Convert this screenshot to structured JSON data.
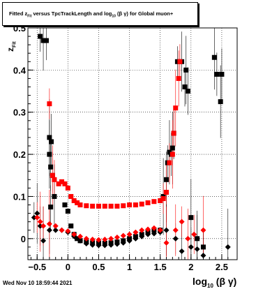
{
  "title": {
    "prefix": "Fitted  z",
    "sub": "Fit",
    "middle": "  versus TpcTrackLength and log",
    "sub2": "10",
    "suffix": " (β  γ) for Global muon+"
  },
  "footer": {
    "date": "Wed Nov 10 18:59:44 2021"
  },
  "axes": {
    "xlabel_main": "log",
    "xlabel_sub": "10",
    "xlabel_tail": " (β γ)",
    "ylabel_main": "z",
    "ylabel_sub": "Fit"
  },
  "colors": {
    "black_series": "#000000",
    "red_series": "#ff0000",
    "grid": "#000000"
  },
  "chart_data": {
    "type": "scatter",
    "xlim": [
      -0.65,
      2.75
    ],
    "ylim": [
      -0.05,
      0.5
    ],
    "grid": true,
    "xticks": [
      -0.5,
      0,
      0.5,
      1,
      1.5,
      2,
      2.5
    ],
    "xtick_labels": [
      "−0.5",
      "0",
      "0.5",
      "1",
      "1.5",
      "2",
      "2.5"
    ],
    "yticks": [
      0,
      0.1,
      0.2,
      0.3,
      0.4,
      0.5
    ],
    "ytick_labels": [
      "0",
      "0.1",
      "0.2",
      "0.3",
      "0.4",
      "0.5"
    ],
    "series": [
      {
        "marker": "square",
        "color": "#000000",
        "points": [
          [
            -0.45,
            0.48
          ],
          [
            -0.4,
            0.47
          ],
          [
            -0.35,
            0.47
          ],
          [
            -0.3,
            0.2
          ],
          [
            -0.28,
            0.17
          ],
          [
            -0.3,
            0.24
          ],
          [
            -0.27,
            0.23
          ],
          [
            -0.25,
            0.15
          ],
          [
            -0.22,
            0.1
          ],
          [
            -0.28,
            0.075
          ],
          [
            -0.05,
            0.08
          ],
          [
            0.0,
            0.065
          ],
          [
            0.05,
            0.03
          ],
          [
            0.1,
            0.01
          ],
          [
            0.15,
            0.0
          ],
          [
            0.2,
            -0.005
          ],
          [
            0.3,
            -0.008
          ],
          [
            0.4,
            -0.01
          ],
          [
            0.5,
            -0.011
          ],
          [
            0.6,
            -0.011
          ],
          [
            0.7,
            -0.01
          ],
          [
            0.8,
            -0.008
          ],
          [
            0.9,
            -0.005
          ],
          [
            1.0,
            0.0
          ],
          [
            1.1,
            0.005
          ],
          [
            1.2,
            0.01
          ],
          [
            1.3,
            0.015
          ],
          [
            1.4,
            0.02
          ],
          [
            1.5,
            0.02
          ],
          [
            1.55,
            0.1
          ],
          [
            1.6,
            0.14
          ],
          [
            1.62,
            0.18
          ],
          [
            1.65,
            0.205
          ],
          [
            1.68,
            0.2
          ],
          [
            1.7,
            0.215
          ],
          [
            1.72,
            0.25
          ],
          [
            1.78,
            0.42
          ],
          [
            1.85,
            0.42
          ],
          [
            1.9,
            0.36
          ],
          [
            1.92,
            0.4
          ],
          [
            1.95,
            0.35
          ],
          [
            2.0,
            0.05
          ],
          [
            2.1,
            0.0
          ],
          [
            2.2,
            -0.02
          ],
          [
            2.38,
            0.43
          ],
          [
            2.42,
            0.39
          ],
          [
            2.48,
            0.325
          ],
          [
            2.5,
            0.39
          ]
        ]
      },
      {
        "marker": "square",
        "color": "#ff0000",
        "points": [
          [
            -0.3,
            0.32
          ],
          [
            -0.25,
            0.15
          ],
          [
            -0.22,
            0.14
          ],
          [
            -0.15,
            0.13
          ],
          [
            -0.1,
            0.135
          ],
          [
            -0.05,
            0.13
          ],
          [
            0.0,
            0.12
          ],
          [
            0.05,
            0.1
          ],
          [
            0.1,
            0.09
          ],
          [
            0.15,
            0.085
          ],
          [
            0.2,
            0.08
          ],
          [
            0.3,
            0.078
          ],
          [
            0.4,
            0.077
          ],
          [
            0.5,
            0.077
          ],
          [
            0.6,
            0.077
          ],
          [
            0.7,
            0.077
          ],
          [
            0.8,
            0.077
          ],
          [
            0.9,
            0.078
          ],
          [
            1.0,
            0.08
          ],
          [
            1.1,
            0.08
          ],
          [
            1.2,
            0.082
          ],
          [
            1.3,
            0.085
          ],
          [
            1.4,
            0.088
          ],
          [
            1.5,
            0.09
          ],
          [
            1.55,
            0.095
          ],
          [
            1.6,
            0.11
          ],
          [
            1.65,
            0.18
          ],
          [
            1.7,
            0.2
          ],
          [
            1.72,
            0.25
          ],
          [
            1.75,
            0.31
          ],
          [
            1.8,
            0.38
          ],
          [
            1.82,
            0.42
          ]
        ]
      },
      {
        "marker": "diamond",
        "color": "#000000",
        "points": [
          [
            -0.55,
            0.05
          ],
          [
            -0.5,
            0.06
          ],
          [
            -0.45,
            0.03
          ],
          [
            -0.4,
            -0.005
          ],
          [
            -0.3,
            0.02
          ],
          [
            -0.2,
            0.02
          ],
          [
            -0.1,
            0.02
          ],
          [
            0.0,
            0.015
          ],
          [
            0.1,
            0.005
          ],
          [
            0.2,
            -0.005
          ],
          [
            0.3,
            -0.012
          ],
          [
            0.4,
            -0.015
          ],
          [
            0.5,
            -0.016
          ],
          [
            0.6,
            -0.016
          ],
          [
            0.7,
            -0.015
          ],
          [
            0.8,
            -0.013
          ],
          [
            0.9,
            -0.01
          ],
          [
            1.0,
            -0.005
          ],
          [
            1.1,
            0.0
          ],
          [
            1.2,
            0.005
          ],
          [
            1.3,
            0.01
          ],
          [
            1.4,
            0.012
          ],
          [
            1.5,
            0.015
          ],
          [
            1.6,
            0.02
          ],
          [
            1.75,
            0.0
          ],
          [
            1.85,
            -0.03
          ],
          [
            2.0,
            -0.02
          ],
          [
            2.1,
            -0.025
          ],
          [
            2.2,
            -0.04
          ],
          [
            2.6,
            -0.02
          ]
        ]
      },
      {
        "marker": "diamond",
        "color": "#ff0000",
        "points": [
          [
            -0.5,
            0.05
          ],
          [
            -0.45,
            0.04
          ],
          [
            -0.4,
            0.03
          ],
          [
            -0.3,
            0.035
          ],
          [
            -0.2,
            0.03
          ],
          [
            -0.1,
            0.02
          ],
          [
            0.0,
            0.018
          ],
          [
            0.1,
            0.01
          ],
          [
            0.2,
            0.005
          ],
          [
            0.3,
            0.0
          ],
          [
            0.4,
            -0.002
          ],
          [
            0.5,
            -0.003
          ],
          [
            0.6,
            -0.002
          ],
          [
            0.7,
            0.0
          ],
          [
            0.8,
            0.003
          ],
          [
            0.9,
            0.007
          ],
          [
            1.0,
            0.01
          ],
          [
            1.1,
            0.015
          ],
          [
            1.2,
            0.02
          ],
          [
            1.3,
            0.022
          ],
          [
            1.4,
            0.025
          ],
          [
            1.5,
            0.02
          ],
          [
            1.6,
            -0.01
          ],
          [
            1.75,
            0.02
          ],
          [
            1.85,
            0.04
          ],
          [
            1.95,
            0.0
          ],
          [
            2.05,
            0.01
          ],
          [
            2.2,
            0.02
          ]
        ]
      }
    ]
  }
}
